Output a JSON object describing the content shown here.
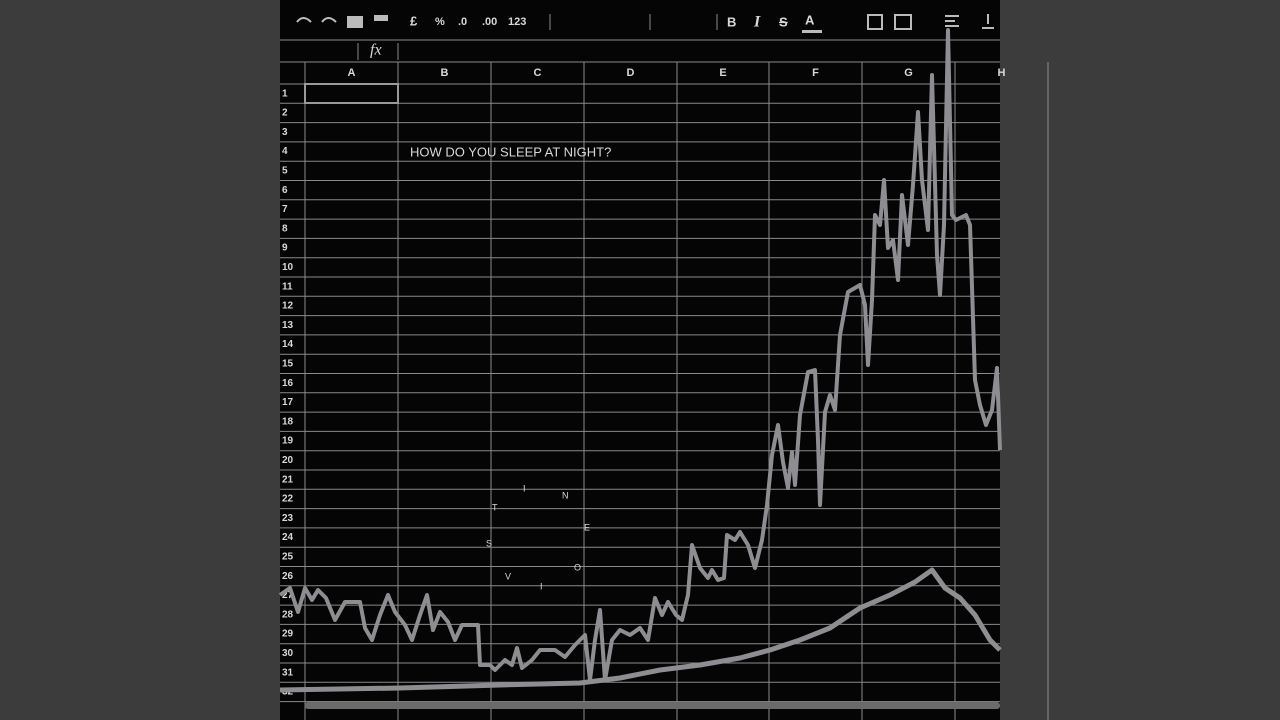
{
  "toolbar": {
    "currency": "£",
    "percent": "%",
    "decrease_decimals": ".0",
    "increase_decimals": ".00",
    "format": "123",
    "bold": "B",
    "italic": "I",
    "strike": "S",
    "text_color": "A"
  },
  "formula_bar": {
    "label": "fx"
  },
  "columns": [
    "A",
    "B",
    "C",
    "D",
    "E",
    "F",
    "G",
    "H"
  ],
  "rows": [
    1,
    2,
    3,
    4,
    5,
    6,
    7,
    8,
    9,
    10,
    11,
    12,
    13,
    14,
    15,
    16,
    17,
    18,
    19,
    20,
    21,
    22,
    23,
    24,
    25,
    26,
    27,
    28,
    29,
    30,
    31,
    32
  ],
  "title": "HOW DO YOU SLEEP AT NIGHT?",
  "circle_letters": [
    "S",
    "T",
    "I",
    "N",
    "E",
    "O",
    "I",
    "V"
  ]
}
